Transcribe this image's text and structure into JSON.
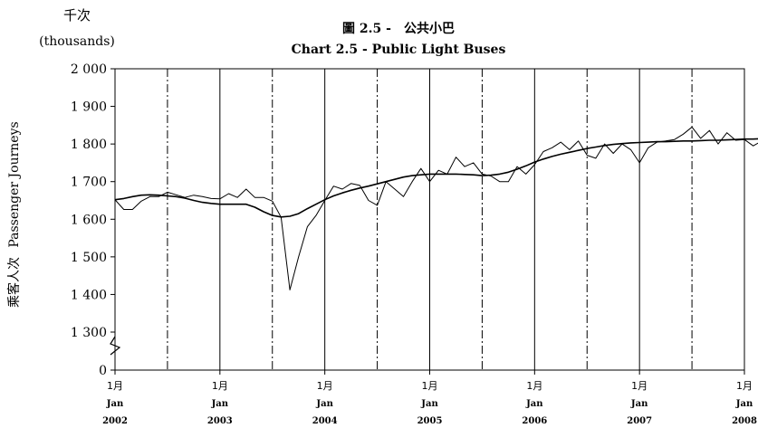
{
  "chart_data": {
    "type": "line",
    "title_zh": "圖 2.5 -　公共小巴",
    "title": "Chart 2.5 - Public Light Buses",
    "unit_zh": "千次",
    "unit": "(thousands)",
    "ylabel_zh": "乘客人次",
    "ylabel": "Passenger Journeys",
    "ylim": [
      0,
      2000
    ],
    "y_ticks": [
      {
        "value": 0,
        "label": "0"
      },
      {
        "value": 1300,
        "label": "1 300"
      },
      {
        "value": 1400,
        "label": "1 400"
      },
      {
        "value": 1500,
        "label": "1 500"
      },
      {
        "value": 1600,
        "label": "1 600"
      },
      {
        "value": 1700,
        "label": "1 700"
      },
      {
        "value": 1800,
        "label": "1 800"
      },
      {
        "value": 1900,
        "label": "1 900"
      },
      {
        "value": 2000,
        "label": "2 000"
      }
    ],
    "x_ticks": [
      {
        "month_zh": "1月",
        "month": "Jan",
        "year": "2002"
      },
      {
        "month_zh": "1月",
        "month": "Jan",
        "year": "2003"
      },
      {
        "month_zh": "1月",
        "month": "Jan",
        "year": "2004"
      },
      {
        "month_zh": "1月",
        "month": "Jan",
        "year": "2005"
      },
      {
        "month_zh": "1月",
        "month": "Jan",
        "year": "2006"
      },
      {
        "month_zh": "1月",
        "month": "Jan",
        "year": "2007"
      },
      {
        "month_zh": "1月",
        "month": "Jan",
        "year": "2008"
      }
    ],
    "axis_break": true,
    "grid": "solid verticals at January, dash-dot verticals at July",
    "series": [
      {
        "style": "thin jagged line",
        "start": "2002-01",
        "values": [
          1652,
          1626,
          1626,
          1648,
          1660,
          1660,
          1672,
          1665,
          1658,
          1664,
          1660,
          1655,
          1654,
          1668,
          1658,
          1680,
          1658,
          1658,
          1648,
          1605,
          1412,
          1500,
          1580,
          1610,
          1650,
          1688,
          1680,
          1695,
          1690,
          1650,
          1637,
          1700,
          1680,
          1660,
          1700,
          1735,
          1700,
          1730,
          1720,
          1765,
          1740,
          1750,
          1720,
          1715,
          1700,
          1700,
          1740,
          1720,
          1745,
          1780,
          1790,
          1805,
          1785,
          1808,
          1770,
          1762,
          1800,
          1775,
          1800,
          1785,
          1750,
          1790,
          1805,
          1808,
          1812,
          1826,
          1845,
          1815,
          1836,
          1800,
          1830,
          1810,
          1812,
          1795,
          1808,
          1758,
          1800,
          1818,
          1810,
          1835,
          1815,
          1825,
          1840,
          1825
        ]
      },
      {
        "style": "smooth trend line",
        "start": "2002-01",
        "values": [
          1652,
          1655,
          1660,
          1664,
          1665,
          1664,
          1662,
          1660,
          1656,
          1650,
          1645,
          1642,
          1640,
          1640,
          1640,
          1640,
          1632,
          1620,
          1610,
          1606,
          1608,
          1615,
          1628,
          1640,
          1652,
          1662,
          1670,
          1677,
          1683,
          1688,
          1694,
          1700,
          1706,
          1712,
          1716,
          1718,
          1720,
          1720,
          1720,
          1720,
          1719,
          1718,
          1716,
          1717,
          1720,
          1725,
          1733,
          1742,
          1752,
          1760,
          1767,
          1773,
          1778,
          1783,
          1788,
          1792,
          1796,
          1799,
          1801,
          1803,
          1804,
          1805,
          1806,
          1806,
          1807,
          1808,
          1808,
          1809,
          1810,
          1810,
          1811,
          1812,
          1813,
          1813,
          1814,
          1814,
          1815,
          1815,
          1815,
          1816,
          1817,
          1818,
          1820,
          1822
        ]
      }
    ]
  }
}
